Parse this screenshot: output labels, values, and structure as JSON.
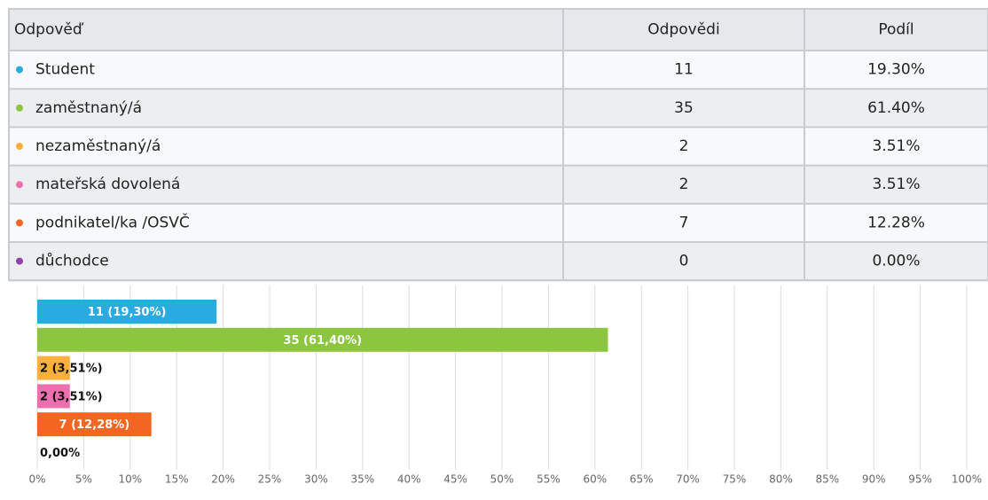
{
  "table": {
    "header": [
      "Odpověď",
      "Odpovědi",
      "Podíl"
    ],
    "rows": [
      [
        "Student",
        "11",
        "19.30%"
      ],
      [
        "zaměstnaný/á",
        "35",
        "61.40%"
      ],
      [
        "nezaměstnaný/á",
        "2",
        "3.51%"
      ],
      [
        "mateřská dovolená",
        "2",
        "3.51%"
      ],
      [
        "podnikatel/ka /OSVČ",
        "7",
        "12.28%"
      ],
      [
        "důchodce",
        "0",
        "0.00%"
      ]
    ]
  },
  "chart_data": {
    "type": "bar",
    "orientation": "horizontal",
    "values": [
      19.3,
      61.4,
      3.51,
      3.51,
      12.28,
      0
    ],
    "value_labels": [
      "11 (19,30%)",
      "35 (61,40%)",
      "2 (3,51%)",
      "2 (3,51%)",
      "7 (12,28%)",
      "0,00%"
    ],
    "colors": [
      "#29abe2",
      "#8cc63f",
      "#fbb03b",
      "#ee6fae",
      "#f26522",
      "#8e44ad"
    ],
    "xlim": [
      0,
      100
    ],
    "xticks": [
      {
        "value": 0,
        "label": "0%"
      },
      {
        "value": 5,
        "label": "5%"
      },
      {
        "value": 10,
        "label": "10%"
      },
      {
        "value": 15,
        "label": "15%"
      },
      {
        "value": 20,
        "label": "20%"
      },
      {
        "value": 25,
        "label": "25%"
      },
      {
        "value": 30,
        "label": "30%"
      },
      {
        "value": 35,
        "label": "35%"
      },
      {
        "value": 40,
        "label": "40%"
      },
      {
        "value": 45,
        "label": "45%"
      },
      {
        "value": 50,
        "label": "50%"
      },
      {
        "value": 55,
        "label": "55%"
      },
      {
        "value": 60,
        "label": "60%"
      },
      {
        "value": 65,
        "label": "65%"
      },
      {
        "value": 70,
        "label": "70%"
      },
      {
        "value": 75,
        "label": "75%"
      },
      {
        "value": 80,
        "label": "80%"
      },
      {
        "value": 85,
        "label": "85%"
      },
      {
        "value": 90,
        "label": "90%"
      },
      {
        "value": 95,
        "label": "95%"
      },
      {
        "value": 100,
        "label": "100%"
      }
    ],
    "grid": true
  }
}
